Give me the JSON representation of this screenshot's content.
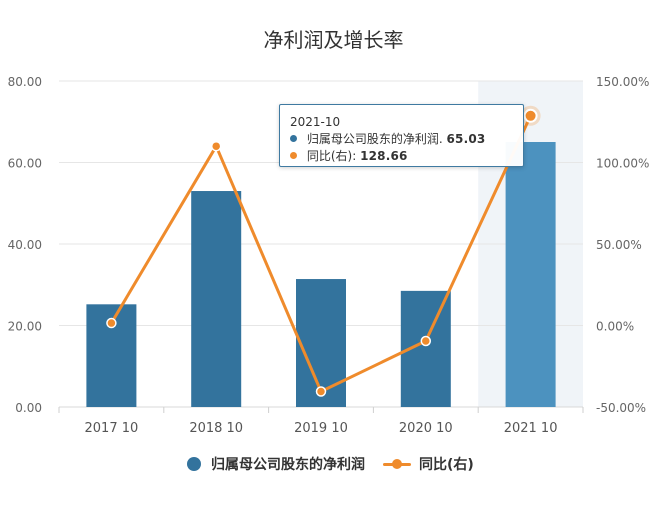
{
  "colors": {
    "bar": "#33739d",
    "bar_highlight": "#4c92bf",
    "line": "#ef8b2c",
    "axis": "#e3e3e3",
    "grid": "#e6e6e6",
    "text": "#333333",
    "muted": "#666666",
    "highlight_band": "#f0f4f8"
  },
  "chart_data": {
    "type": "bar",
    "title": "净利润及增长率",
    "categories": [
      "2017  10",
      "2018  10",
      "2019  10",
      "2020  10",
      "2021  10"
    ],
    "series": [
      {
        "name": "归属母公司股东的净利润",
        "type": "bar",
        "axis": "left",
        "values": [
          25.2,
          53.0,
          31.4,
          28.5,
          65.03
        ]
      },
      {
        "name": "同比(右)",
        "type": "line",
        "axis": "right",
        "values": [
          1.5,
          110.0,
          -40.5,
          -9.5,
          128.66
        ]
      }
    ],
    "y_left": {
      "ticks": [
        "80.00",
        "60.00",
        "40.00",
        "20.00",
        "0.00"
      ],
      "range": [
        0,
        80
      ]
    },
    "y_right": {
      "ticks": [
        "150.00%",
        "100.00%",
        "50.00%",
        "0.00%",
        "-50.00%"
      ],
      "range": [
        -50,
        150
      ]
    },
    "grid": true,
    "highlight_index": 4,
    "tooltip": {
      "title": "2021-10",
      "rows": [
        {
          "label": "归属母公司股东的净利润",
          "separator": ". ",
          "value": "65.03",
          "color": "#33739d"
        },
        {
          "label": "同比(右)",
          "separator": ": ",
          "value": "128.66",
          "color": "#ef8b2c"
        }
      ]
    },
    "legend": [
      {
        "label": "归属母公司股东的净利润",
        "kind": "bar",
        "color": "#33739d"
      },
      {
        "label": "同比(右)",
        "kind": "line",
        "color": "#ef8b2c"
      }
    ]
  }
}
